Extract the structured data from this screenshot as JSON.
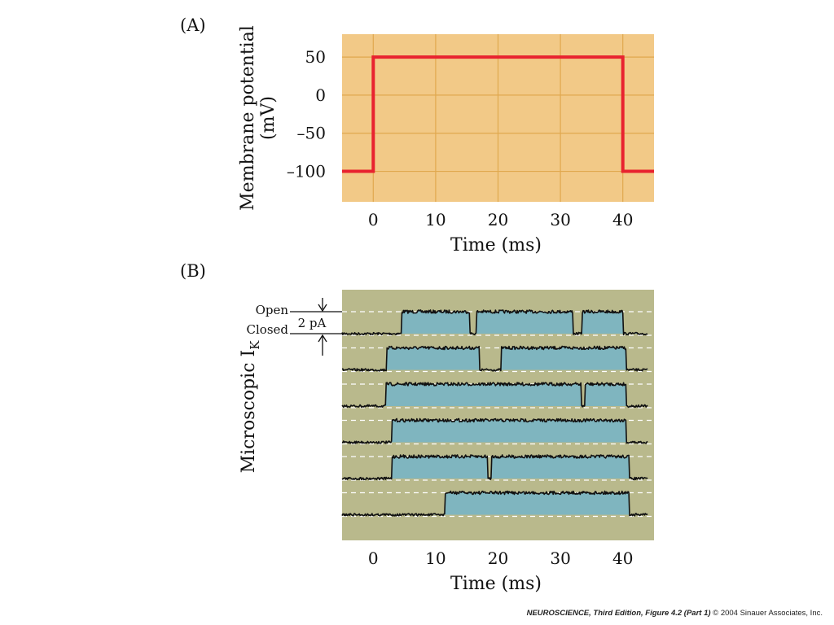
{
  "colors": {
    "panel_a_bg": "#f2c987",
    "panel_a_grid": "#e0a84e",
    "panel_a_line": "#e8222f",
    "panel_b_bg": "#b9b98c",
    "panel_b_fill": "#7fb5bf",
    "panel_b_trace": "#111111",
    "panel_b_dash": "#ffffff"
  },
  "chart_data": [
    {
      "type": "line",
      "panel_label": "(A)",
      "xlabel": "Time (ms)",
      "ylabel_line1": "Membrane potential",
      "ylabel_line2": "(mV)",
      "xlim": [
        -5,
        45
      ],
      "ylim": [
        -140,
        80
      ],
      "x_ticks": [
        0,
        10,
        20,
        30,
        40
      ],
      "y_ticks": [
        50,
        0,
        -50,
        -100
      ],
      "y_tick_labels": [
        "50",
        "0",
        "–50",
        "–100"
      ],
      "grid": true,
      "series": [
        {
          "x": [
            -5,
            0,
            0,
            40,
            40,
            45
          ],
          "y": [
            -100,
            -100,
            50,
            50,
            -100,
            -100
          ]
        }
      ]
    },
    {
      "type": "line",
      "panel_label": "(B)",
      "xlabel": "Time (ms)",
      "ylabel_main": "Microscopic I",
      "ylabel_sub": "K",
      "xlim": [
        -5,
        45
      ],
      "x_ticks": [
        0,
        10,
        20,
        30,
        40
      ],
      "annotations": {
        "open": "Open",
        "closed": "Closed",
        "scale": "2 pA"
      },
      "traces": [
        {
          "onset": 4.5,
          "offset": 40.0,
          "closures": [
            [
              15.5,
              16.5
            ],
            [
              32.0,
              33.5
            ]
          ]
        },
        {
          "onset": 2.2,
          "offset": 40.5,
          "closures": [
            [
              17.0,
              20.5
            ]
          ]
        },
        {
          "onset": 2.0,
          "offset": 40.5,
          "closures": [
            [
              33.3,
              34.0
            ]
          ]
        },
        {
          "onset": 3.0,
          "offset": 40.5,
          "closures": []
        },
        {
          "onset": 3.0,
          "offset": 41.0,
          "closures": [
            [
              18.3,
              18.9
            ]
          ]
        },
        {
          "onset": 11.5,
          "offset": 41.0,
          "closures": []
        }
      ]
    }
  ],
  "caption": {
    "book": "NEUROSCIENCE",
    "edition": ", Third Edition",
    "figure": ", Figure 4.2 (Part 1)",
    "copyright": "  © 2004 Sinauer Associates, Inc."
  }
}
